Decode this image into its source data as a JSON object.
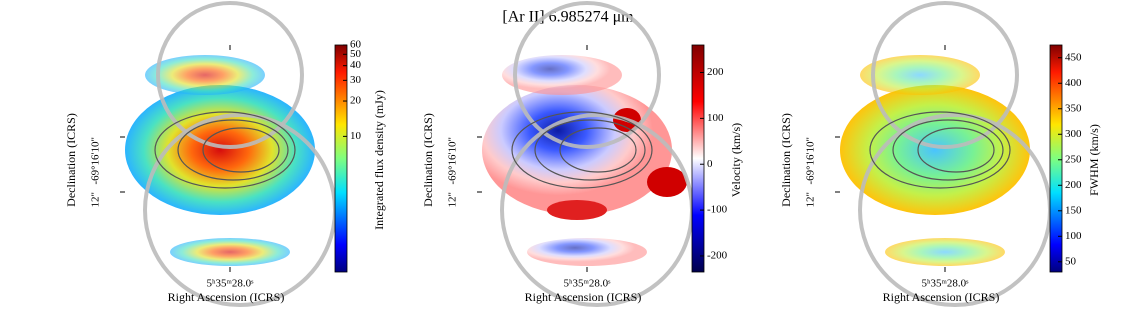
{
  "title": "[Ar II] 6.985274 μm",
  "panels": [
    {
      "x_label": "Right Ascension (ICRS)",
      "y_label": "Declination (ICRS)",
      "x_tick": "5ʰ35ᵐ28.0ˢ",
      "y_ticks": [
        "-69°16'10\"",
        "12\""
      ],
      "colorbar": {
        "label": "Integrated flux density (mJy)",
        "scale": "log",
        "clim": [
          0.7,
          60
        ],
        "ticks": [
          10,
          20,
          30,
          40,
          50,
          60
        ],
        "colormap": "jet"
      }
    },
    {
      "x_label": "Right Ascension (ICRS)",
      "y_label": "Declination (ICRS)",
      "x_tick": "5ʰ35ᵐ28.0ˢ",
      "y_ticks": [
        "-69°16'10\"",
        "12\""
      ],
      "colorbar": {
        "label": "Velocity (km/s)",
        "scale": "linear",
        "clim": [
          -235,
          260
        ],
        "ticks": [
          -200,
          -100,
          0,
          100,
          200
        ],
        "colormap": "seismic"
      }
    },
    {
      "x_label": "Right Ascension (ICRS)",
      "y_label": "Declination (ICRS)",
      "x_tick": "5ʰ35ᵐ28.0ˢ",
      "y_ticks": [
        "-69°16'10\"",
        "12\""
      ],
      "colorbar": {
        "label": "FWHM (km/s)",
        "scale": "linear",
        "clim": [
          30,
          475
        ],
        "ticks": [
          50,
          100,
          150,
          200,
          250,
          300,
          350,
          400,
          450
        ],
        "colormap": "jet"
      }
    }
  ]
}
